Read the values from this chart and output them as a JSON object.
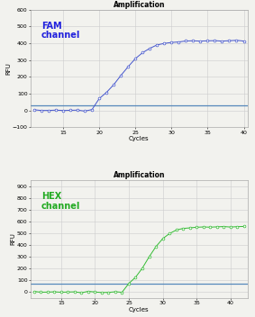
{
  "fam": {
    "title": "Amplification",
    "xlabel": "Cycles",
    "ylabel": "RFU",
    "label": "FAM\nchannel",
    "label_color": "#2222DD",
    "line_color": "#4455CC",
    "marker_color": "#4455CC",
    "threshold_color": "#5588BB",
    "threshold_y": 32,
    "xlim": [
      10.5,
      40.5
    ],
    "ylim": [
      -100,
      600
    ],
    "xticks": [
      15,
      20,
      25,
      30,
      35,
      40
    ],
    "yticks": [
      -100,
      0,
      100,
      200,
      300,
      400,
      500,
      600
    ],
    "sigmoid_midpoint": 23.0,
    "sigmoid_steepness": 0.52,
    "sigmoid_max": 415,
    "flat_until": 19,
    "flat_noise": 3
  },
  "hex": {
    "title": "Amplification",
    "xlabel": "Cycles",
    "ylabel": "RFU",
    "label": "HEX\nchannel",
    "label_color": "#22AA22",
    "line_color": "#33BB33",
    "marker_color": "#33BB33",
    "threshold_color": "#5588BB",
    "threshold_y": 72,
    "xlim": [
      10.5,
      42.5
    ],
    "ylim": [
      -50,
      950
    ],
    "xticks": [
      15,
      20,
      25,
      30,
      35,
      40
    ],
    "yticks": [
      0,
      100,
      200,
      300,
      400,
      500,
      600,
      700,
      800,
      900
    ],
    "sigmoid_midpoint": 27.8,
    "sigmoid_steepness": 0.68,
    "sigmoid_max": 555,
    "flat_until": 24,
    "flat_noise": 4
  },
  "bg_color": "#F2F2EE",
  "grid_color": "#CCCCCC",
  "title_fontsize": 5.5,
  "axis_label_fontsize": 5,
  "tick_fontsize": 4.5,
  "channel_label_fontsize": 7
}
